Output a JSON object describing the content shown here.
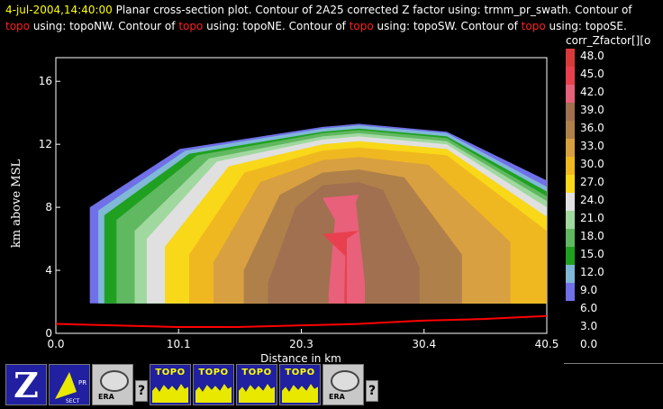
{
  "header": {
    "timestamp": "4-jul-2004,14:40:00",
    "part1": " Planar cross-section plot.  Contour of 2A25 corrected Z factor using: trmm_pr_swath.  Contour of ",
    "topo1": "topo",
    "part2": " using: topoNW.  Contour of ",
    "topo2": "topo",
    "part3": " using: topoNE.  Contour of ",
    "topo3": "topo",
    "part4": " using: topoSW.  Contour of ",
    "topo4": "topo",
    "part5": " using: topoSE."
  },
  "colorbar": {
    "title": "corr_Zfactor[][o",
    "levels": [
      "48.0",
      "45.0",
      "42.0",
      "39.0",
      "36.0",
      "33.0",
      "30.0",
      "27.0",
      "24.0",
      "21.0",
      "18.0",
      "15.0",
      "12.0",
      "9.0",
      "6.0",
      "3.0",
      "0.0"
    ],
    "colors": [
      "#d83a3a",
      "#e8404e",
      "#e8607a",
      "#a07050",
      "#b0804a",
      "#d8a040",
      "#f0b820",
      "#f8d818",
      "#e0e0e0",
      "#a0d8a0",
      "#60b860",
      "#20a020",
      "#80b8d8",
      "#7070e8"
    ]
  },
  "chart_data": {
    "type": "heatmap",
    "title": "",
    "xlabel": "Distance in km",
    "ylabel": "km above MSL",
    "xticks": [
      "0.0",
      "10.1",
      "20.3",
      "30.4",
      "40.5"
    ],
    "yticks": [
      "0",
      "4",
      "8",
      "12",
      "16"
    ],
    "xlim": [
      0,
      40.5
    ],
    "ylim": [
      0,
      17.5
    ],
    "levels": [
      9,
      12,
      15,
      18,
      21,
      24,
      27,
      30,
      33,
      36,
      39,
      42,
      45
    ],
    "level_colors": [
      "#7070e8",
      "#80b8d8",
      "#20a020",
      "#60b860",
      "#a0d8a0",
      "#e0e0e0",
      "#f8d818",
      "#f0b820",
      "#d8a040",
      "#b0804a",
      "#a07050",
      "#e8607a",
      "#e8404e"
    ],
    "topo_line": [
      [
        0,
        0.6
      ],
      [
        5,
        0.5
      ],
      [
        10,
        0.4
      ],
      [
        15,
        0.4
      ],
      [
        20,
        0.5
      ],
      [
        25,
        0.6
      ],
      [
        30,
        0.8
      ],
      [
        35,
        0.9
      ],
      [
        40.5,
        1.1
      ]
    ]
  },
  "toolbar": {
    "z_label": "Z",
    "topo_label": "TOPO",
    "era_label": "ERA",
    "help_label": "?"
  }
}
